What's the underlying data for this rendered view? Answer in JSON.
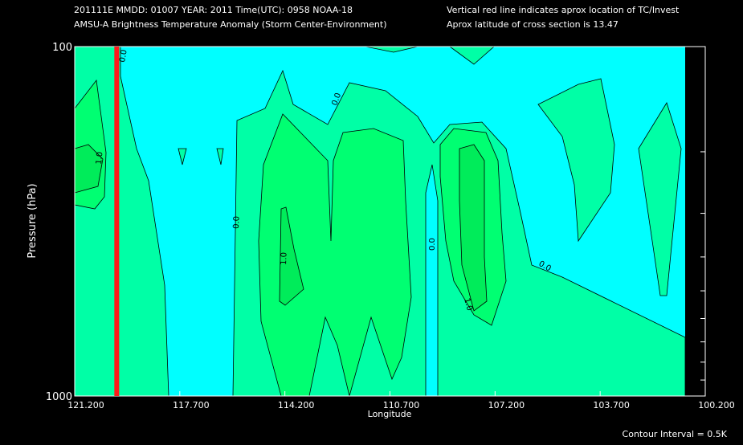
{
  "chart_data": {
    "type": "contour",
    "header_left": [
      "201111E  MMDD: 01007 YEAR: 2011 Time(UTC): 0958 NOAA-18",
      "AMSU-A Brightness Temperature Anomaly (Storm Center-Environment)"
    ],
    "header_right": [
      "Vertical red line indicates aprox location of TC/Invest",
      "Aprox latitude of cross section is 13.47"
    ],
    "xlabel": "Longitude",
    "ylabel": "Pressure (hPa)",
    "footnote": "Contour Interval = 0.5K",
    "xlim": [
      121.2,
      100.2
    ],
    "xticks": [
      {
        "value": 121.2,
        "label": "121.200"
      },
      {
        "value": 117.7,
        "label": "117.700"
      },
      {
        "value": 114.2,
        "label": "114.200"
      },
      {
        "value": 110.7,
        "label": "110.700"
      },
      {
        "value": 107.2,
        "label": "107.200"
      },
      {
        "value": 103.7,
        "label": "103.700"
      },
      {
        "value": 100.2,
        "label": "100.200"
      }
    ],
    "ylim": [
      1000,
      100
    ],
    "yticks": [
      100,
      1000
    ],
    "minor_yticks": [
      200,
      300,
      400,
      500,
      600,
      700,
      800,
      900
    ],
    "log_y": true,
    "tc_longitude": 119.8,
    "tc_color": "#ff1a1a",
    "contour_levels": [
      0,
      0.5,
      1
    ],
    "contour_level_labels": [
      "0.0",
      null,
      "1.0"
    ],
    "fill_colors": [
      "#00ffff",
      "#00ffa6",
      "#00ff72",
      "#00ec5a"
    ]
  }
}
